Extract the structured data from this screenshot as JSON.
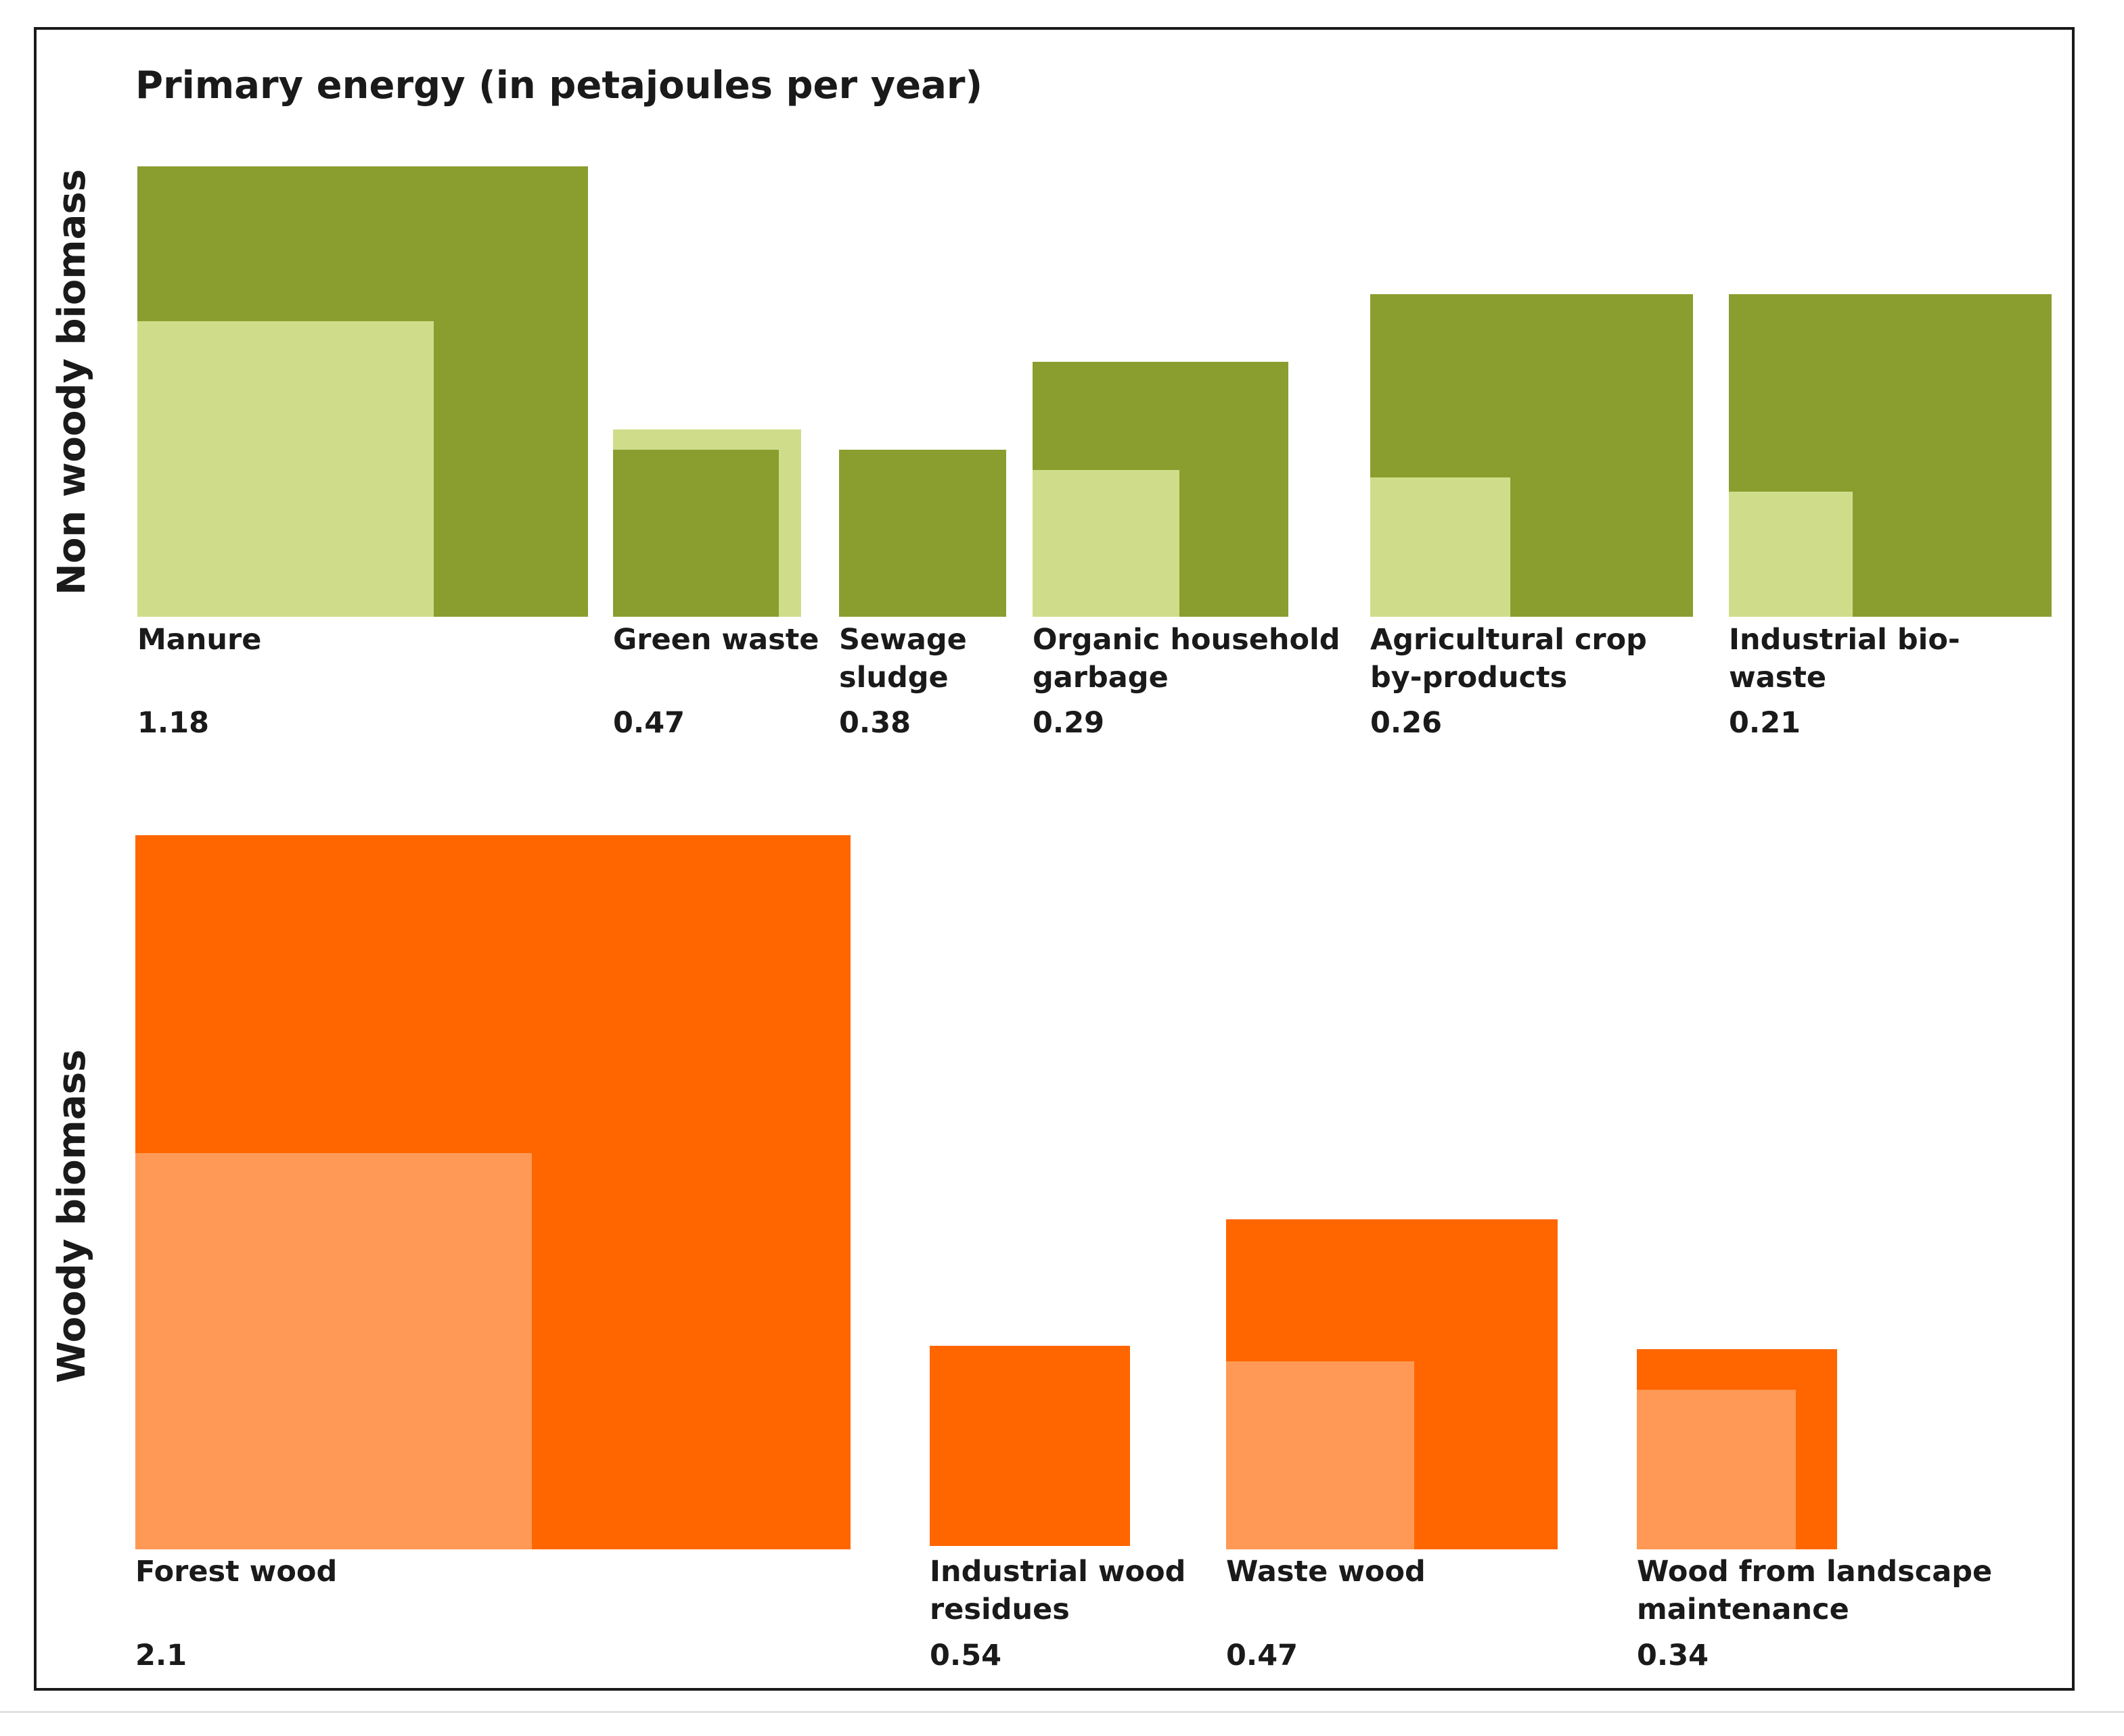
{
  "chart_data": [
    {
      "type": "nested-squares",
      "title": "Primary energy (in petajoules per year)",
      "group_label": "Non woody biomass",
      "colors": {
        "outer": "#8a9e2f",
        "inner": "#cfdd8b"
      },
      "items": [
        {
          "label_lines": [
            "Manure"
          ],
          "value": "1.18"
        },
        {
          "label_lines": [
            "Green waste"
          ],
          "value": "0.47"
        },
        {
          "label_lines": [
            "Sewage",
            "sludge"
          ],
          "value": "0.38"
        },
        {
          "label_lines": [
            "Organic household",
            "garbage"
          ],
          "value": "0.29"
        },
        {
          "label_lines": [
            "Agricultural crop",
            "by-products"
          ],
          "value": "0.26"
        },
        {
          "label_lines": [
            "Industrial bio-",
            "waste"
          ],
          "value": "0.21"
        }
      ]
    },
    {
      "type": "nested-squares",
      "group_label": "Woody biomass",
      "colors": {
        "outer": "#ff6600",
        "inner": "#ff9955"
      },
      "items": [
        {
          "label_lines": [
            "Forest wood"
          ],
          "value": "2.1"
        },
        {
          "label_lines": [
            "Industrial wood",
            "residues"
          ],
          "value": "0.54"
        },
        {
          "label_lines": [
            "Waste wood"
          ],
          "value": "0.47"
        },
        {
          "label_lines": [
            "Wood from landscape",
            "maintenance"
          ],
          "value": "0.34"
        }
      ]
    }
  ]
}
